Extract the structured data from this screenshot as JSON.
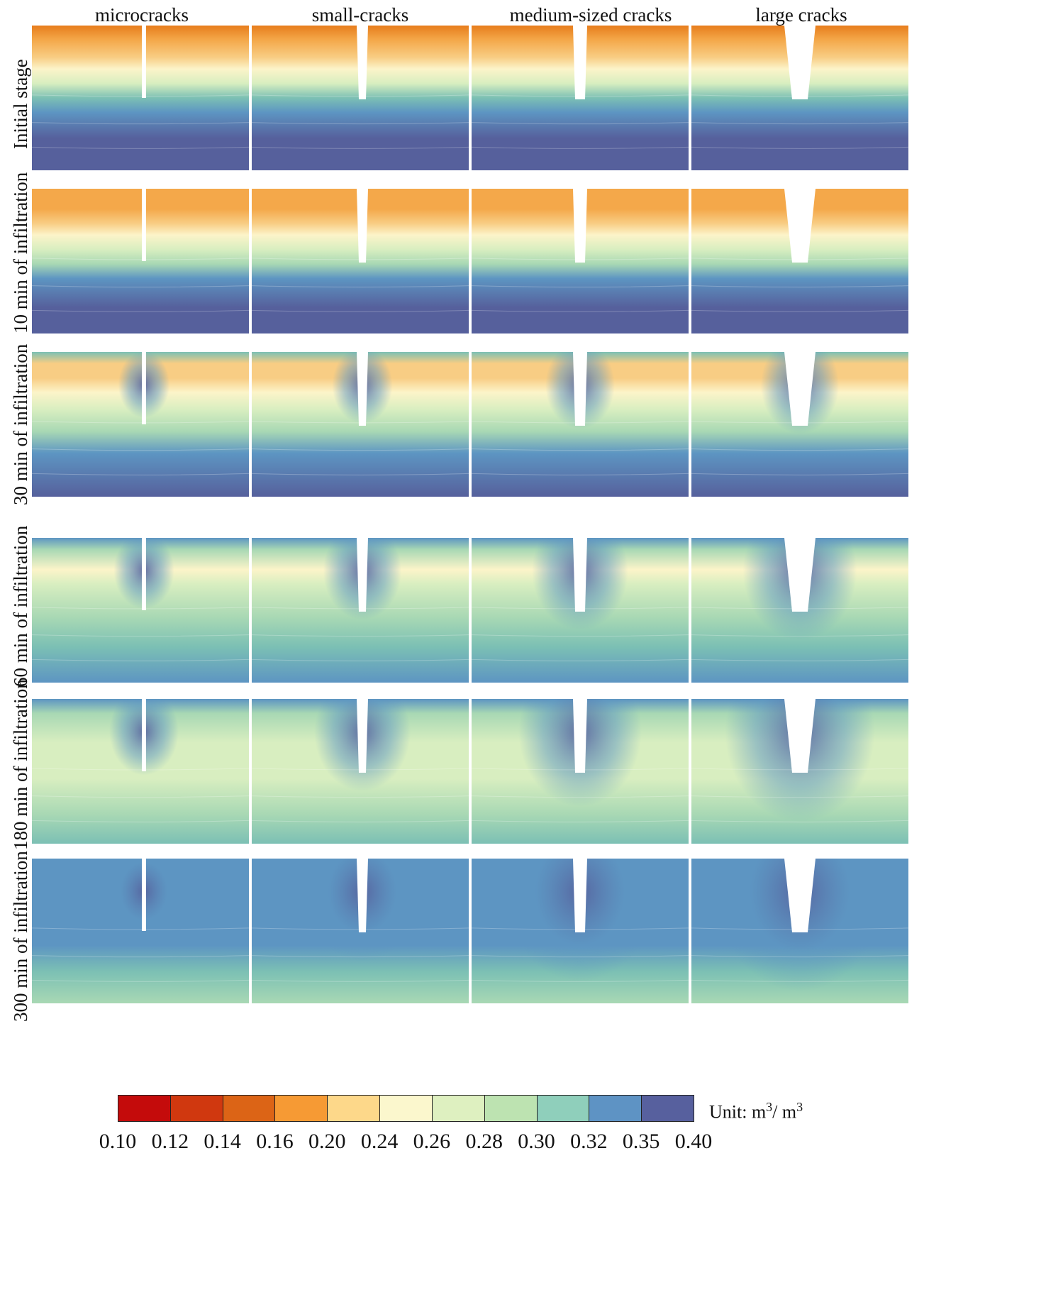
{
  "figure": {
    "columns": [
      {
        "key": "micro",
        "label": "microcracks"
      },
      {
        "key": "small",
        "label": "small-cracks"
      },
      {
        "key": "medium",
        "label": "medium-sized cracks"
      },
      {
        "key": "large",
        "label": "large cracks"
      }
    ],
    "rows": [
      {
        "label": "Initial stage",
        "stage": 0
      },
      {
        "label": "10 min of infiltration",
        "stage": 1
      },
      {
        "label": "30 min of infiltration",
        "stage": 2
      },
      {
        "label": "60 min of infiltration",
        "stage": 3
      },
      {
        "label": "180 min of infiltration",
        "stage": 4
      },
      {
        "label": "300 min of infiltration",
        "stage": 5
      }
    ]
  },
  "legend": {
    "unit_prefix": "Unit: m",
    "unit_sup1": "3",
    "unit_mid": "/ m",
    "unit_sup2": "3",
    "ticks": [
      "0.10",
      "0.12",
      "0.14",
      "0.16",
      "0.20",
      "0.24",
      "0.26",
      "0.28",
      "0.30",
      "0.32",
      "0.35",
      "0.40"
    ],
    "colors": [
      "#c40b0b",
      "#d0380f",
      "#dc6416",
      "#f69a34",
      "#fdd88a",
      "#fbf7cd",
      "#def0c0",
      "#bde3b1",
      "#8fcfbb",
      "#5e93c4",
      "#57609e"
    ]
  },
  "colormap": {
    "orange_deep": "#e77d1c",
    "orange": "#f4a84a",
    "orange_light": "#f8cd84",
    "cream": "#fcf4c9",
    "pale_green": "#d8eec0",
    "green": "#a8d8b4",
    "teal": "#7cc0b4",
    "blue": "#5d95c2",
    "indigo": "#56609c"
  }
}
